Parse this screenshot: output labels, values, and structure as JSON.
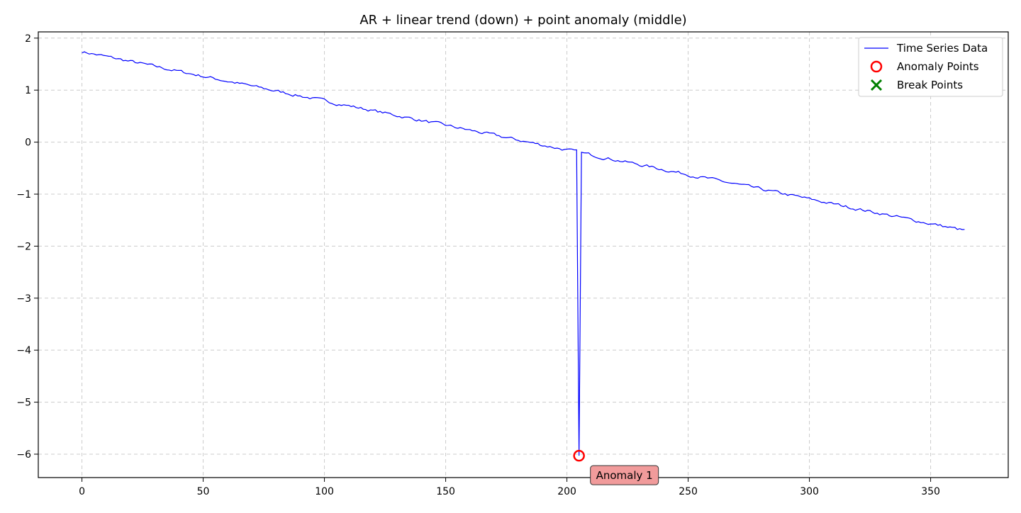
{
  "chart_data": {
    "type": "line",
    "title": "AR + linear trend (down) + point anomaly (middle)",
    "xlabel": "",
    "ylabel": "",
    "xlim": [
      -18,
      382
    ],
    "ylim": [
      -6.45,
      2.12
    ],
    "xticks": [
      0,
      50,
      100,
      150,
      200,
      250,
      300,
      350
    ],
    "yticks": [
      2,
      1,
      0,
      -1,
      -2,
      -3,
      -4,
      -5,
      -6
    ],
    "ytick_labels": [
      "2",
      "1",
      "0",
      "−1",
      "−2",
      "−3",
      "−4",
      "−5",
      "−6"
    ],
    "grid": true,
    "legend_position": "top-right",
    "series": [
      {
        "name": "Time Series Data",
        "color": "#0000ff",
        "trend": {
          "start": 1.74,
          "end": -1.7,
          "n": 365
        },
        "anomaly": {
          "x": 205,
          "y": -6.03
        }
      }
    ],
    "legend": [
      {
        "label": "Time Series Data",
        "marker": "line",
        "color": "#0000ff"
      },
      {
        "label": "Anomaly Points",
        "marker": "circle",
        "color": "#ff0000"
      },
      {
        "label": "Break Points",
        "marker": "x",
        "color": "#008000"
      }
    ],
    "anomaly_points": [
      {
        "x": 205,
        "y": -6.03
      }
    ],
    "break_points": [],
    "annotations": [
      {
        "text": "Anomaly 1",
        "x": 205,
        "y": -6.03
      }
    ]
  }
}
